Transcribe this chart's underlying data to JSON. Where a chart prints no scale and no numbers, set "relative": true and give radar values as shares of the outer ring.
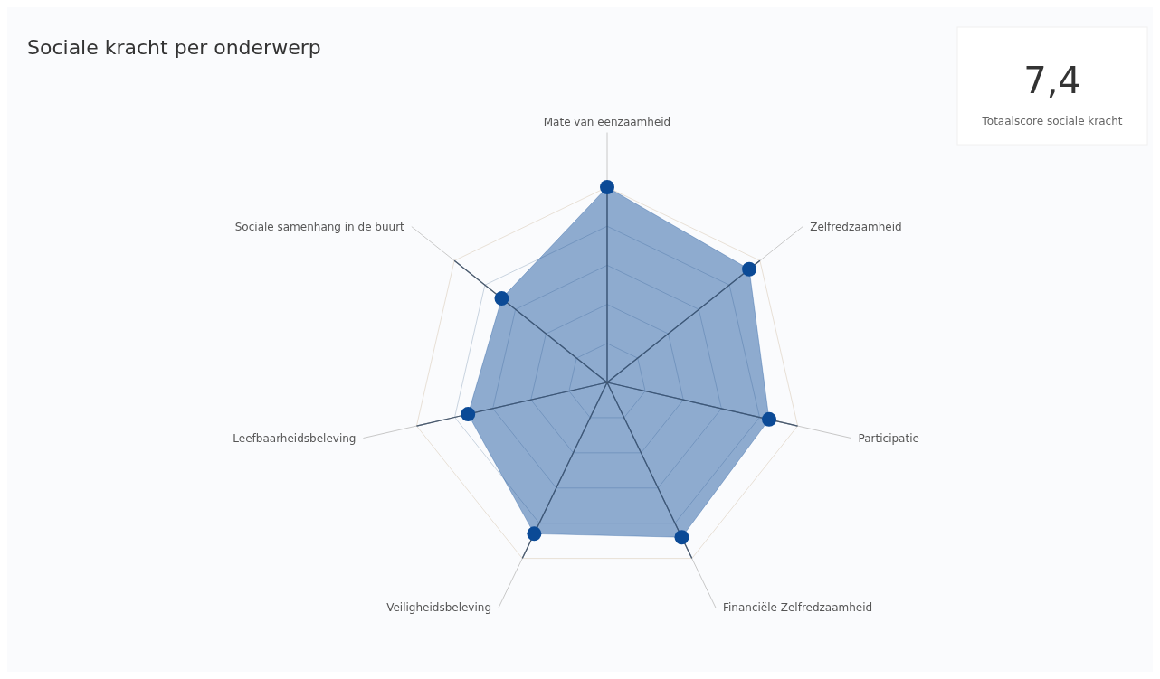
{
  "chart_data": [
    {
      "type": "radar",
      "title": "Sociale kracht per onderwerp",
      "relative": true,
      "grid": true,
      "marker": "circle",
      "categories": [
        "Mate van eenzaamheid",
        "Zelfredzaamheid",
        "Participatie",
        "Financiële Zelfredzaamheid",
        "Veiligheidsbeleving",
        "Leefbaarheidsbeleving",
        "Sociale samenhang in de buurt"
      ],
      "series": [
        {
          "color": "#0b4a96",
          "values": [
            1.0,
            0.93,
            0.85,
            0.88,
            0.86,
            0.73,
            0.69
          ]
        }
      ]
    },
    {
      "type": "other",
      "title": "7,4",
      "subtitle": "Totaalscore sociale kracht"
    }
  ]
}
